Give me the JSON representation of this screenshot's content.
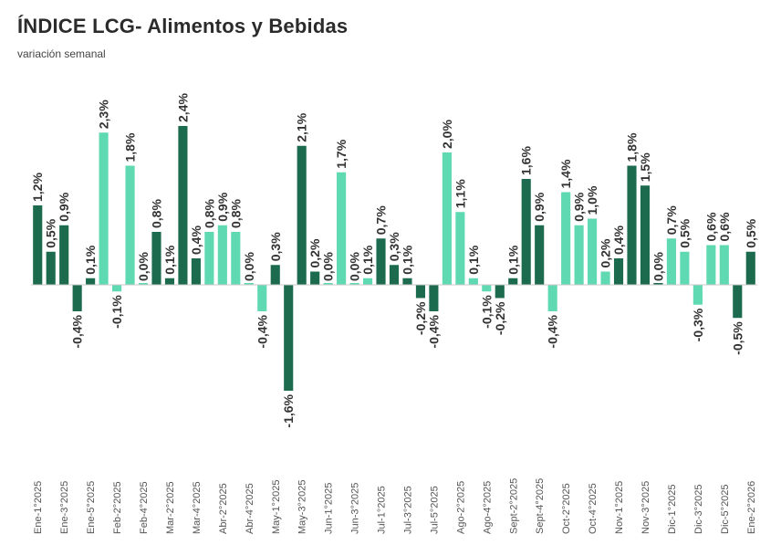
{
  "title": "ÍNDICE LCG- Alimentos y Bebidas",
  "subtitle": "variación semanal",
  "colors": {
    "dark": "#1c6b4e",
    "light": "#5fd9b2",
    "text": "#333333",
    "baseline": "#c8c8c8"
  },
  "chart_data": {
    "type": "bar",
    "title": "ÍNDICE LCG- Alimentos y Bebidas",
    "subtitle": "variación semanal",
    "xlabel": "",
    "ylabel": "",
    "ylim": [
      -1.6,
      2.4
    ],
    "grid": false,
    "legend": "none",
    "tick_labels": [
      "Ene-1°2025",
      "Ene-3°2025",
      "Ene-5°2025",
      "Feb-2°2025",
      "Feb-4°2025",
      "Mar-2°2025",
      "Mar-4°2025",
      "Abr-2°2025",
      "Abr-4°2025",
      "May-1°2025",
      "May-3°2025",
      "Jun-1°2025",
      "Jun-3°2025",
      "Jul-1°2025",
      "Jul-3°2025",
      "Jul-5°2025",
      "Ago-2°2025",
      "Ago-4°2025",
      "Sept-2°2025",
      "Sept-4°2025",
      "Oct-2°2025",
      "Oct-4°2025",
      "Nov-1°2025",
      "Nov-3°2025",
      "Dic-1°2025",
      "Dic-3°2025",
      "Dic-5°2025",
      "Ene-2°2026"
    ],
    "values": [
      1.2,
      0.5,
      0.9,
      -0.4,
      0.1,
      2.3,
      -0.1,
      1.8,
      0.0,
      0.8,
      0.1,
      2.4,
      0.4,
      0.8,
      0.9,
      0.8,
      0.0,
      -0.4,
      0.3,
      -1.6,
      2.1,
      0.2,
      0.0,
      1.7,
      0.0,
      0.1,
      0.7,
      0.3,
      0.1,
      -0.2,
      -0.4,
      2.0,
      1.1,
      0.1,
      -0.1,
      -0.2,
      0.1,
      1.6,
      0.9,
      -0.4,
      1.4,
      0.9,
      1.0,
      0.2,
      0.4,
      1.8,
      1.5,
      0.0,
      0.7,
      0.5,
      -0.3,
      0.6,
      0.6,
      -0.5,
      0.5
    ],
    "value_labels": [
      "1,2%",
      "0,5%",
      "0,9%",
      "-0,4%",
      "0,1%",
      "2,3%",
      "-0,1%",
      "1,8%",
      "0,0%",
      "0,8%",
      "0,1%",
      "2,4%",
      "0,4%",
      "0,8%",
      "0,9%",
      "0,8%",
      "0,0%",
      "-0,4%",
      "0,3%",
      "-1,6%",
      "2,1%",
      "0,2%",
      "0,0%",
      "1,7%",
      "0,0%",
      "0,1%",
      "0,7%",
      "0,3%",
      "0,1%",
      "-0,2%",
      "-0,4%",
      "2,0%",
      "1,1%",
      "0,1%",
      "-0,1%",
      "-0,2%",
      "0,1%",
      "1,6%",
      "0,9%",
      "-0,4%",
      "1,4%",
      "0,9%",
      "1,0%",
      "0,2%",
      "0,4%",
      "1,8%",
      "1,5%",
      "0,0%",
      "0,7%",
      "0,5%",
      "-0,3%",
      "0,6%",
      "0,6%",
      "-0,5%",
      "0,5%"
    ],
    "bar_colors": [
      "dark",
      "dark",
      "dark",
      "dark",
      "dark",
      "light",
      "light",
      "light",
      "light",
      "dark",
      "dark",
      "dark",
      "dark",
      "light",
      "light",
      "light",
      "light",
      "light",
      "dark",
      "dark",
      "dark",
      "dark",
      "light",
      "light",
      "light",
      "light",
      "dark",
      "dark",
      "dark",
      "dark",
      "dark",
      "light",
      "light",
      "light",
      "light",
      "dark",
      "dark",
      "dark",
      "dark",
      "light",
      "light",
      "light",
      "light",
      "light",
      "dark",
      "dark",
      "dark",
      "dark",
      "light",
      "light",
      "light",
      "light",
      "light",
      "dark",
      "dark"
    ]
  }
}
